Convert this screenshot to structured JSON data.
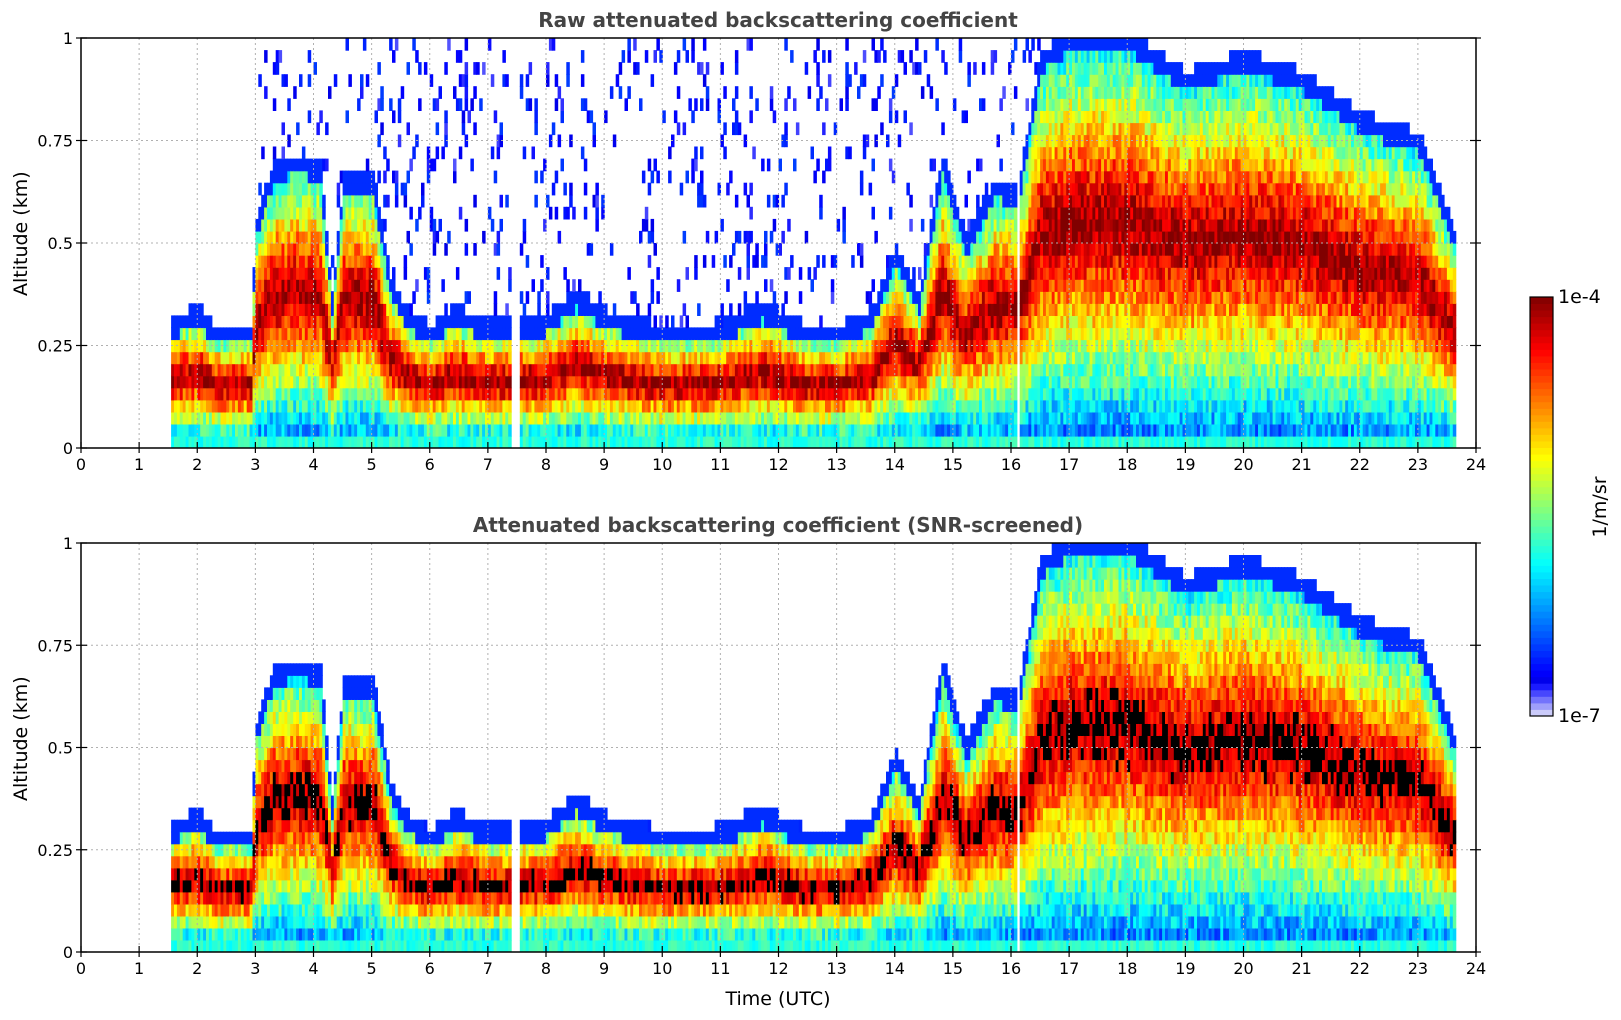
{
  "chart_data": [
    {
      "type": "heatmap",
      "title": "Raw attenuated backscattering coefficient",
      "xlabel": "",
      "ylabel": "Altitude (km)",
      "xlim": [
        0,
        24
      ],
      "ylim": [
        0,
        1
      ],
      "xticks": [
        "0",
        "1",
        "2",
        "3",
        "4",
        "5",
        "6",
        "7",
        "8",
        "9",
        "10",
        "11",
        "12",
        "13",
        "14",
        "15",
        "16",
        "17",
        "18",
        "19",
        "20",
        "21",
        "22",
        "23",
        "24"
      ],
      "yticks": [
        "0",
        "0.25",
        "0.5",
        "0.75",
        "1"
      ],
      "grid": true,
      "data_time_range": [
        1.55,
        23.65
      ],
      "layer_top_km": [
        {
          "t": 1.55,
          "top": 0.3
        },
        {
          "t": 2.0,
          "top": 0.33
        },
        {
          "t": 2.3,
          "top": 0.28
        },
        {
          "t": 2.9,
          "top": 0.28
        },
        {
          "t": 3.0,
          "top": 0.55
        },
        {
          "t": 3.3,
          "top": 0.68
        },
        {
          "t": 3.7,
          "top": 0.7
        },
        {
          "t": 4.1,
          "top": 0.68
        },
        {
          "t": 4.3,
          "top": 0.35
        },
        {
          "t": 4.5,
          "top": 0.66
        },
        {
          "t": 5.0,
          "top": 0.66
        },
        {
          "t": 5.3,
          "top": 0.4
        },
        {
          "t": 5.6,
          "top": 0.32
        },
        {
          "t": 6.0,
          "top": 0.28
        },
        {
          "t": 6.4,
          "top": 0.33
        },
        {
          "t": 7.0,
          "top": 0.29
        },
        {
          "t": 7.4,
          "top": 0.3
        },
        {
          "t": 8.0,
          "top": 0.31
        },
        {
          "t": 8.5,
          "top": 0.37
        },
        {
          "t": 9.0,
          "top": 0.32
        },
        {
          "t": 10.0,
          "top": 0.28
        },
        {
          "t": 11.0,
          "top": 0.29
        },
        {
          "t": 11.7,
          "top": 0.34
        },
        {
          "t": 12.5,
          "top": 0.28
        },
        {
          "t": 13.0,
          "top": 0.28
        },
        {
          "t": 13.6,
          "top": 0.32
        },
        {
          "t": 14.0,
          "top": 0.48
        },
        {
          "t": 14.4,
          "top": 0.36
        },
        {
          "t": 14.8,
          "top": 0.7
        },
        {
          "t": 15.2,
          "top": 0.5
        },
        {
          "t": 15.7,
          "top": 0.64
        },
        {
          "t": 16.1,
          "top": 0.62
        },
        {
          "t": 16.5,
          "top": 0.95
        },
        {
          "t": 17.0,
          "top": 1.0
        },
        {
          "t": 18.0,
          "top": 1.0
        },
        {
          "t": 19.0,
          "top": 0.9
        },
        {
          "t": 20.0,
          "top": 0.95
        },
        {
          "t": 21.0,
          "top": 0.9
        },
        {
          "t": 22.0,
          "top": 0.8
        },
        {
          "t": 23.0,
          "top": 0.75
        },
        {
          "t": 23.65,
          "top": 0.5
        }
      ]
    },
    {
      "type": "heatmap",
      "title": "Attenuated backscattering coefficient (SNR-screened)",
      "xlabel": "Time (UTC)",
      "ylabel": "Altitude (km)",
      "xlim": [
        0,
        24
      ],
      "ylim": [
        0,
        1
      ],
      "xticks": [
        "0",
        "1",
        "2",
        "3",
        "4",
        "5",
        "6",
        "7",
        "8",
        "9",
        "10",
        "11",
        "12",
        "13",
        "14",
        "15",
        "16",
        "17",
        "18",
        "19",
        "20",
        "21",
        "22",
        "23",
        "24"
      ],
      "yticks": [
        "0",
        "0.25",
        "0.5",
        "0.75",
        "1"
      ],
      "grid": true,
      "data_time_range": [
        1.55,
        23.65
      ],
      "saturated_color": "#000000"
    }
  ],
  "colorbar": {
    "label": "1/m/sr",
    "max_label": "1e-4",
    "min_label": "1e-7",
    "scale": "log",
    "range": [
      1e-07,
      0.0001
    ],
    "colormap": "jet"
  }
}
